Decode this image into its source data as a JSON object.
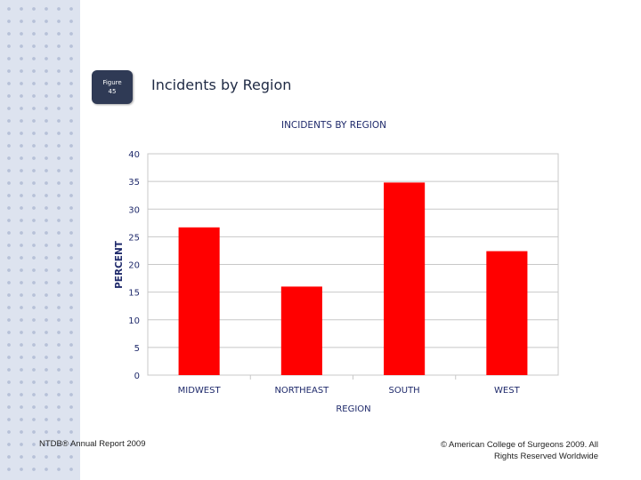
{
  "slide": {
    "badge_line1": "Figure",
    "badge_line2": "45",
    "title": "Incidents by Region",
    "footer_left": "NTDB® Annual Report 2009",
    "footer_right": "© American College of Surgeons 2009.  All Rights Reserved Worldwide"
  },
  "colors": {
    "bar": "#ff0000",
    "axis_text": "#1f2a6b",
    "side_band": "#dde3ef"
  },
  "chart_data": {
    "type": "bar",
    "title": "INCIDENTS BY REGION",
    "xlabel": "REGION",
    "ylabel": "PERCENT",
    "categories": [
      "MIDWEST",
      "NORTHEAST",
      "SOUTH",
      "WEST"
    ],
    "values": [
      26.7,
      16.0,
      34.8,
      22.4
    ],
    "ylim": [
      0,
      40
    ],
    "yticks": [
      0,
      5,
      10,
      15,
      20,
      25,
      30,
      35,
      40
    ],
    "grid": true,
    "legend": "none"
  }
}
